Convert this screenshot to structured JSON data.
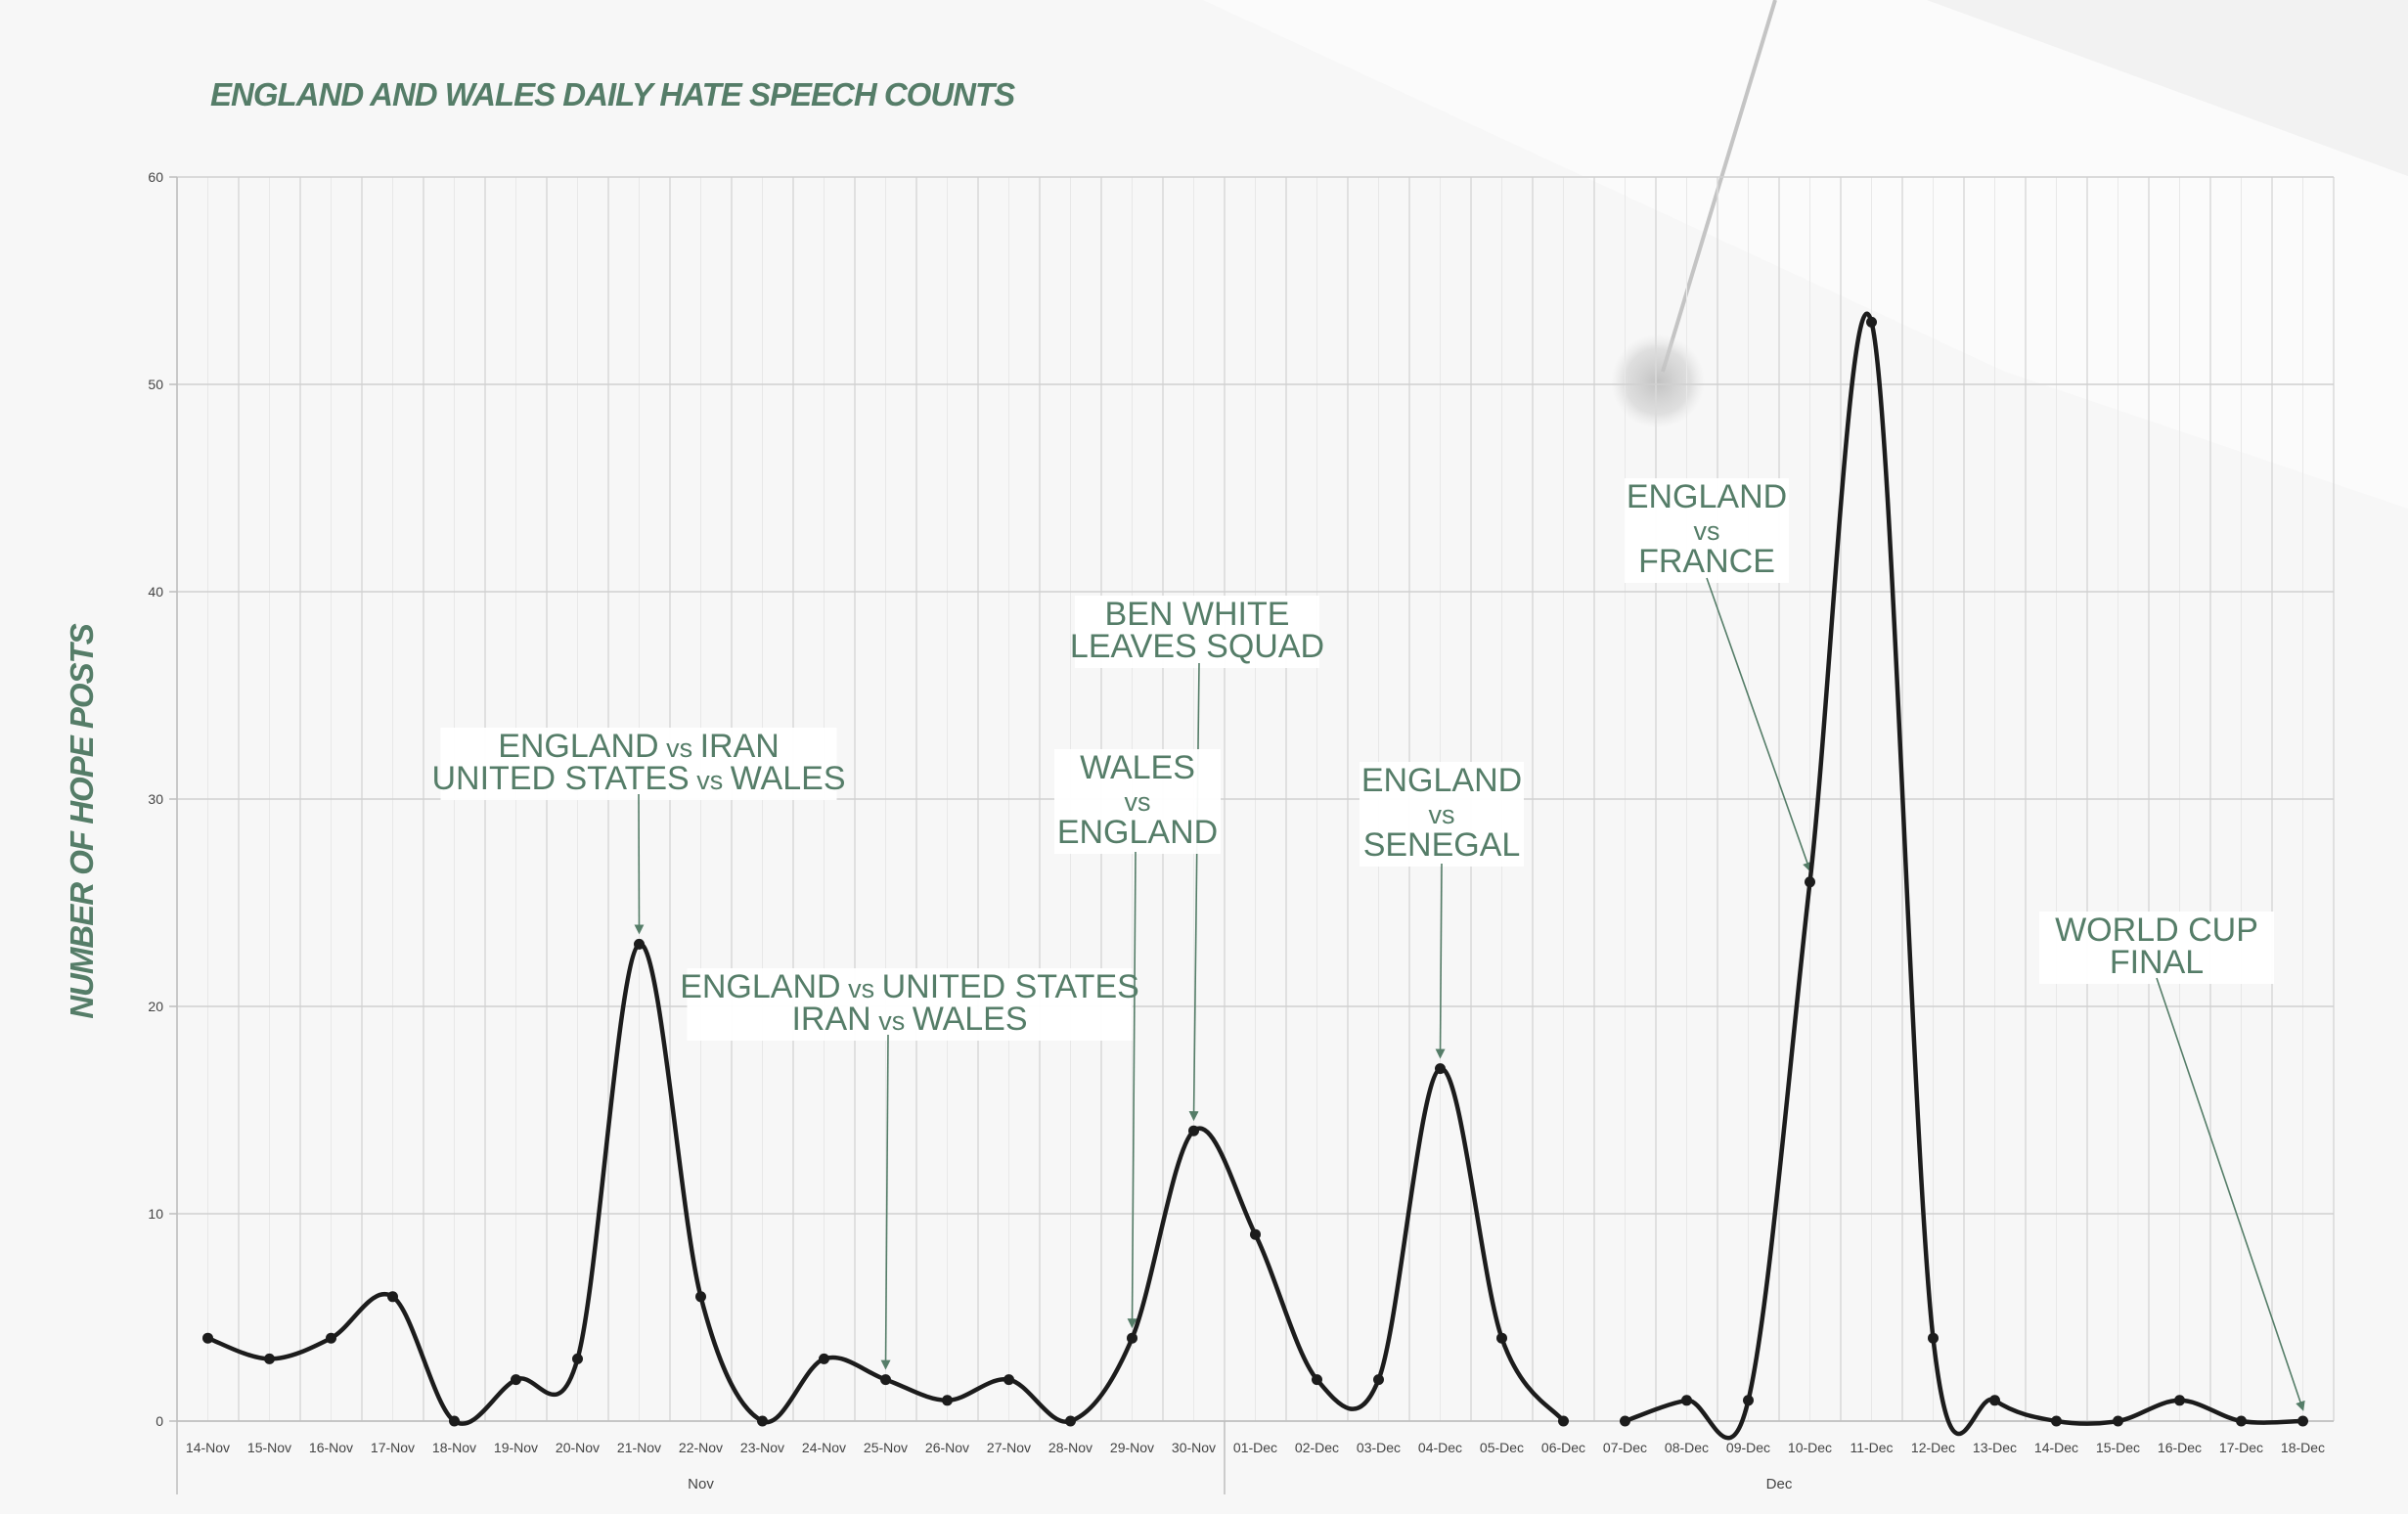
{
  "chart_data": {
    "type": "line",
    "title": "ENGLAND AND WALES DAILY HATE SPEECH COUNTS",
    "ylabel": "NUMBER OF HOPE POSTS",
    "xlabel": "",
    "ylim": [
      0,
      60
    ],
    "yticks": [
      0,
      10,
      20,
      30,
      40,
      50,
      60
    ],
    "grid": true,
    "categories": [
      "14-Nov",
      "15-Nov",
      "16-Nov",
      "17-Nov",
      "18-Nov",
      "19-Nov",
      "20-Nov",
      "21-Nov",
      "22-Nov",
      "23-Nov",
      "24-Nov",
      "25-Nov",
      "26-Nov",
      "27-Nov",
      "28-Nov",
      "29-Nov",
      "30-Nov",
      "01-Dec",
      "02-Dec",
      "03-Dec",
      "04-Dec",
      "05-Dec",
      "06-Dec",
      "07-Dec",
      "08-Dec",
      "09-Dec",
      "10-Dec",
      "11-Dec",
      "12-Dec",
      "13-Dec",
      "14-Dec",
      "15-Dec",
      "16-Dec",
      "17-Dec",
      "18-Dec"
    ],
    "month_groups": [
      {
        "label": "Nov",
        "start": 0,
        "end": 16
      },
      {
        "label": "Dec",
        "start": 17,
        "end": 34
      }
    ],
    "segments": [
      [
        0,
        22
      ],
      [
        23,
        34
      ]
    ],
    "values": [
      4,
      3,
      4,
      6,
      0,
      2,
      3,
      23,
      6,
      0,
      3,
      2,
      1,
      2,
      0,
      4,
      14,
      9,
      2,
      2,
      17,
      4,
      0,
      0,
      1,
      1,
      26,
      53,
      4,
      1,
      0,
      0,
      1,
      0,
      0
    ],
    "line_color": "#1c1c1c",
    "annotation_color": "#557d68",
    "annotations": [
      {
        "lines": [
          "ENGLAND vs IRAN",
          "UNITED STATES vs WALES"
        ],
        "target_index": 7
      },
      {
        "lines": [
          "ENGLAND vs UNITED STATES",
          "IRAN vs WALES"
        ],
        "target_index": 11
      },
      {
        "lines": [
          "BEN WHITE",
          "LEAVES SQUAD"
        ],
        "target_index": 16
      },
      {
        "lines": [
          "WALES",
          "vs",
          "ENGLAND"
        ],
        "target_index": 15
      },
      {
        "lines": [
          "ENGLAND",
          "vs",
          "SENEGAL"
        ],
        "target_index": 20
      },
      {
        "lines": [
          "ENGLAND",
          "vs",
          "FRANCE"
        ],
        "target_index": 26
      },
      {
        "lines": [
          "WORLD CUP",
          "FINAL"
        ],
        "target_index": 34
      }
    ]
  }
}
